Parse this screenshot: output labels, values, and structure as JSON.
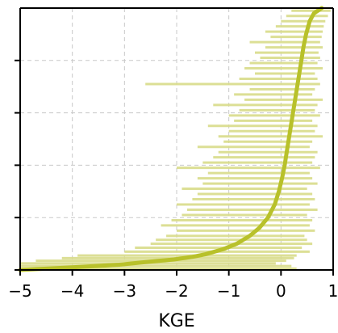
{
  "chart_data": {
    "type": "line",
    "title": "",
    "xlabel": "KGE",
    "ylabel": "",
    "xlim": [
      -5,
      1
    ],
    "x_ticks": [
      "−5",
      "−4",
      "−3",
      "−2",
      "−1",
      "0",
      "1"
    ],
    "x_tick_values": [
      -5,
      -4,
      -3,
      -2,
      -1,
      0,
      1
    ],
    "y_tick_count": 5,
    "grid": true,
    "legend": "none",
    "colors": {
      "band": "#d8dc8a",
      "median": "#b8c12a",
      "grid": "#c8c8c8",
      "axis": "#000000"
    },
    "median_curve": {
      "rank_fraction": [
        0.0,
        0.01,
        0.02,
        0.03,
        0.04,
        0.05,
        0.06,
        0.08,
        0.1,
        0.13,
        0.16,
        0.2,
        0.25,
        0.3,
        0.35,
        0.4,
        0.45,
        0.5,
        0.55,
        0.6,
        0.65,
        0.7,
        0.75,
        0.8,
        0.85,
        0.9,
        0.95,
        0.98,
        1.0
      ],
      "kge": [
        -5.0,
        -4.0,
        -3.1,
        -2.6,
        -2.05,
        -1.7,
        -1.45,
        -1.1,
        -0.85,
        -0.6,
        -0.42,
        -0.25,
        -0.12,
        -0.04,
        0.02,
        0.07,
        0.11,
        0.15,
        0.19,
        0.23,
        0.27,
        0.31,
        0.35,
        0.39,
        0.43,
        0.48,
        0.55,
        0.63,
        0.78
      ]
    },
    "range_bars": {
      "rank_fraction": [
        0.005,
        0.015,
        0.025,
        0.035,
        0.045,
        0.055,
        0.07,
        0.085,
        0.1,
        0.115,
        0.13,
        0.15,
        0.17,
        0.19,
        0.21,
        0.23,
        0.25,
        0.27,
        0.29,
        0.31,
        0.33,
        0.35,
        0.37,
        0.39,
        0.41,
        0.43,
        0.45,
        0.47,
        0.49,
        0.51,
        0.53,
        0.55,
        0.57,
        0.59,
        0.61,
        0.63,
        0.65,
        0.67,
        0.69,
        0.71,
        0.73,
        0.75,
        0.77,
        0.79,
        0.81,
        0.83,
        0.85,
        0.87,
        0.89,
        0.91,
        0.93,
        0.95,
        0.97,
        0.99
      ],
      "low": [
        -5.0,
        -5.0,
        -5.0,
        -4.7,
        -4.2,
        -3.9,
        -3.0,
        -2.8,
        -2.5,
        -2.4,
        -2.2,
        -2.0,
        -2.3,
        -2.1,
        -1.9,
        -1.8,
        -2.0,
        -1.7,
        -1.6,
        -1.9,
        -1.5,
        -1.6,
        -1.4,
        -2.0,
        -1.5,
        -1.3,
        -1.2,
        -1.6,
        -1.1,
        -1.2,
        -1.0,
        -1.4,
        -0.9,
        -1.0,
        -0.8,
        -1.3,
        -0.7,
        -0.9,
        -0.6,
        -2.6,
        -0.8,
        -0.5,
        -0.7,
        -0.6,
        -0.4,
        -0.5,
        -0.3,
        -0.6,
        -0.2,
        -0.3,
        -0.1,
        0.0,
        0.1,
        0.2
      ],
      "high": [
        0.3,
        0.2,
        -0.1,
        0.1,
        0.25,
        0.3,
        0.55,
        0.4,
        0.6,
        0.5,
        0.45,
        0.65,
        0.55,
        0.6,
        0.5,
        0.7,
        0.55,
        0.65,
        0.6,
        0.5,
        0.7,
        0.6,
        0.55,
        0.75,
        0.6,
        0.65,
        0.7,
        0.55,
        0.6,
        0.8,
        0.65,
        0.7,
        0.6,
        0.75,
        0.65,
        0.7,
        0.8,
        0.6,
        0.65,
        0.75,
        0.7,
        0.65,
        0.8,
        0.7,
        0.75,
        0.72,
        0.8,
        0.75,
        0.78,
        0.8,
        0.82,
        0.85,
        0.9,
        0.95
      ]
    }
  }
}
